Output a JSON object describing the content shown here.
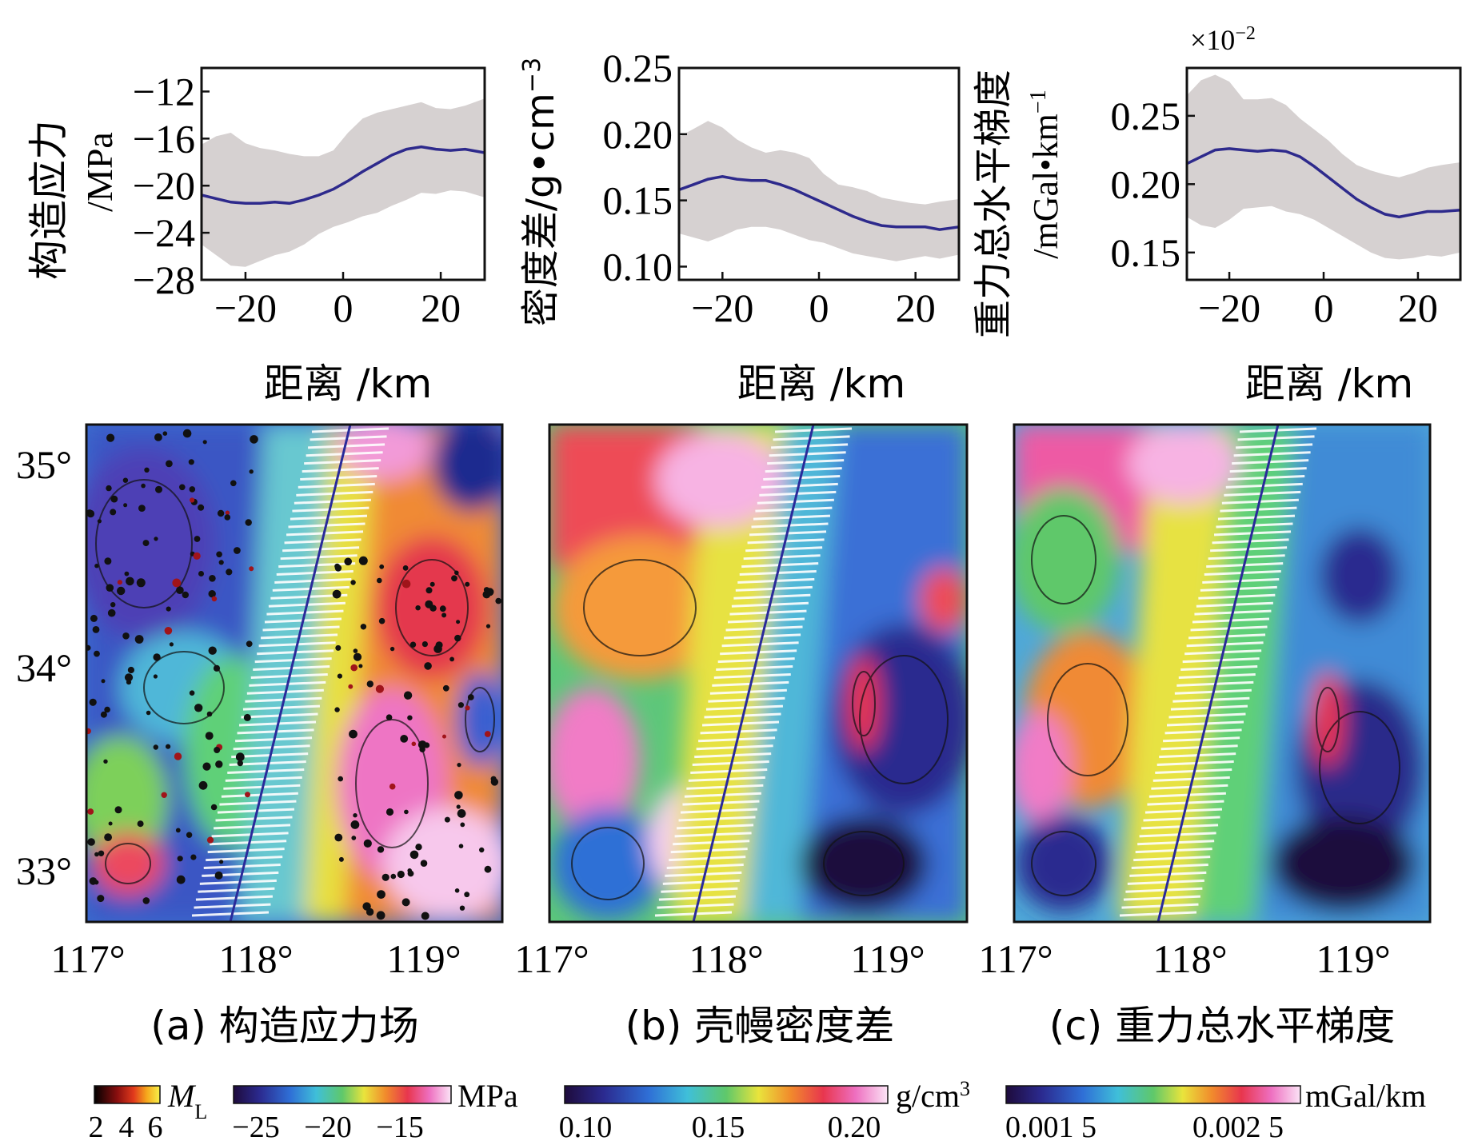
{
  "colors": {
    "line": "#2e2a8c",
    "band": "#d6d1d1",
    "axis": "#111111"
  },
  "chart_data": [
    {
      "type": "line",
      "panel": "top-left",
      "ylabel_line1": "构造应力",
      "ylabel_line2": "/MPa",
      "xlabel": "距离 /km",
      "x_ticks": [
        "−20",
        "0",
        "20"
      ],
      "y_ticks": [
        "−12",
        "−16",
        "−20",
        "−24",
        "−28"
      ],
      "xlim": [
        -29,
        29
      ],
      "ylim": [
        -28,
        -10
      ],
      "x_tick_values": [
        -20,
        0,
        20
      ],
      "y_tick_values": [
        -12,
        -16,
        -20,
        -24,
        -28
      ],
      "x": [
        -29,
        -26,
        -23,
        -20,
        -17,
        -14,
        -11,
        -8,
        -5,
        -2,
        1,
        4,
        7,
        10,
        13,
        16,
        19,
        22,
        25,
        29
      ],
      "mean": [
        -20.8,
        -21.1,
        -21.4,
        -21.5,
        -21.5,
        -21.4,
        -21.5,
        -21.2,
        -20.8,
        -20.3,
        -19.6,
        -18.8,
        -18.1,
        -17.4,
        -16.9,
        -16.7,
        -16.9,
        -17.0,
        -16.9,
        -17.2
      ],
      "upper": [
        -16.5,
        -15.8,
        -15.5,
        -16.4,
        -16.8,
        -17.0,
        -17.3,
        -17.5,
        -17.5,
        -17.0,
        -15.5,
        -14.3,
        -13.8,
        -13.5,
        -13.2,
        -12.9,
        -13.4,
        -13.5,
        -13.2,
        -12.6
      ],
      "lower": [
        -25.0,
        -25.9,
        -26.8,
        -26.9,
        -26.4,
        -25.9,
        -25.6,
        -25.0,
        -24.1,
        -23.5,
        -23.1,
        -22.6,
        -22.3,
        -21.7,
        -21.2,
        -20.6,
        -20.7,
        -20.4,
        -20.5,
        -21.0
      ]
    },
    {
      "type": "line",
      "panel": "top-middle",
      "ylabel_line1": "密度差/g•cm",
      "ylabel_sup": "−3",
      "xlabel": "距离 /km",
      "x_ticks": [
        "−20",
        "0",
        "20"
      ],
      "y_ticks": [
        "0.25",
        "0.20",
        "0.15",
        "0.10"
      ],
      "xlim": [
        -29,
        29
      ],
      "ylim": [
        0.09,
        0.25
      ],
      "x_tick_values": [
        -20,
        0,
        20
      ],
      "y_tick_values": [
        0.25,
        0.2,
        0.15,
        0.1
      ],
      "x": [
        -29,
        -26,
        -23,
        -20,
        -17,
        -14,
        -11,
        -8,
        -5,
        -2,
        1,
        4,
        7,
        10,
        13,
        16,
        19,
        22,
        25,
        29
      ],
      "mean": [
        0.158,
        0.162,
        0.166,
        0.168,
        0.166,
        0.165,
        0.165,
        0.162,
        0.158,
        0.153,
        0.148,
        0.143,
        0.138,
        0.134,
        0.131,
        0.13,
        0.13,
        0.13,
        0.128,
        0.13
      ],
      "upper": [
        0.198,
        0.204,
        0.21,
        0.205,
        0.196,
        0.19,
        0.186,
        0.188,
        0.186,
        0.182,
        0.17,
        0.162,
        0.16,
        0.157,
        0.152,
        0.15,
        0.148,
        0.147,
        0.149,
        0.151
      ],
      "lower": [
        0.125,
        0.122,
        0.119,
        0.123,
        0.128,
        0.13,
        0.13,
        0.128,
        0.124,
        0.12,
        0.118,
        0.114,
        0.11,
        0.108,
        0.106,
        0.104,
        0.106,
        0.108,
        0.106,
        0.109
      ]
    },
    {
      "type": "line",
      "panel": "top-right",
      "ylabel_line1": "重力总水平梯度",
      "ylabel_line2": "/mGal•km",
      "ylabel_sup": "−1",
      "scale_label": "×10",
      "scale_sup": "−2",
      "xlabel": "距离 /km",
      "x_ticks": [
        "−20",
        "0",
        "20"
      ],
      "y_ticks": [
        "0.25",
        "0.20",
        "0.15"
      ],
      "xlim": [
        -29,
        29
      ],
      "ylim": [
        0.13,
        0.285
      ],
      "x_tick_values": [
        -20,
        0,
        20
      ],
      "y_tick_values": [
        0.25,
        0.2,
        0.15
      ],
      "x": [
        -29,
        -26,
        -23,
        -20,
        -17,
        -14,
        -11,
        -8,
        -5,
        -2,
        1,
        4,
        7,
        10,
        13,
        16,
        19,
        22,
        25,
        29
      ],
      "mean": [
        0.215,
        0.22,
        0.225,
        0.226,
        0.225,
        0.224,
        0.225,
        0.224,
        0.22,
        0.213,
        0.205,
        0.197,
        0.189,
        0.183,
        0.178,
        0.176,
        0.178,
        0.18,
        0.18,
        0.181
      ],
      "upper": [
        0.265,
        0.276,
        0.28,
        0.275,
        0.262,
        0.262,
        0.263,
        0.258,
        0.248,
        0.24,
        0.232,
        0.222,
        0.214,
        0.21,
        0.207,
        0.205,
        0.208,
        0.212,
        0.214,
        0.216
      ],
      "lower": [
        0.176,
        0.17,
        0.168,
        0.174,
        0.182,
        0.183,
        0.184,
        0.18,
        0.178,
        0.174,
        0.168,
        0.162,
        0.156,
        0.15,
        0.146,
        0.145,
        0.146,
        0.148,
        0.147,
        0.15
      ]
    }
  ],
  "maps": {
    "y_ticks": [
      "35°",
      "34°",
      "33°"
    ],
    "x_ticks": [
      "117°",
      "118°",
      "119°"
    ],
    "captions": [
      "(a) 构造应力场",
      "(b) 壳幔密度差",
      "(c) 重力总水平梯度"
    ]
  },
  "colorbars": {
    "ml_label": "M",
    "ml_sub": "L",
    "ml_ticks": [
      "2",
      "4",
      "6"
    ],
    "stress_unit": "MPa",
    "stress_ticks": [
      "−25",
      "−20",
      "−15"
    ],
    "density_unit": "g/cm",
    "density_sup": "3",
    "density_ticks": [
      "0.10",
      "0.15",
      "0.20"
    ],
    "gradient_unit": "mGal/km",
    "gradient_ticks": [
      "0.001 5",
      "0.002 5"
    ]
  }
}
